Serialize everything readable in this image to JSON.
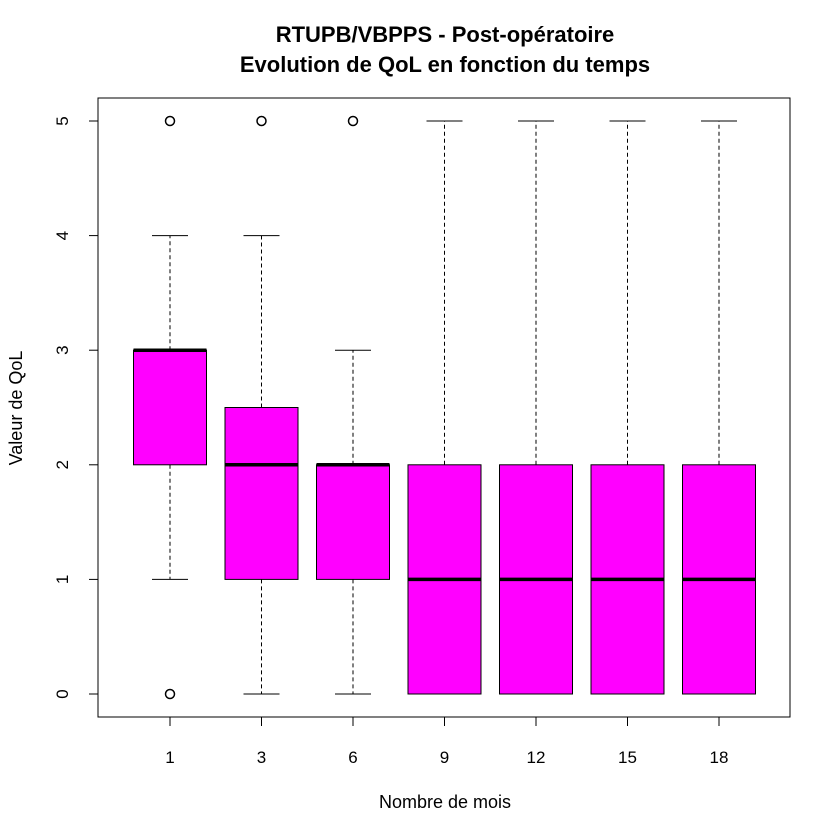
{
  "chart_data": {
    "type": "boxplot",
    "title": "RTUPB/VBPPS - Post-opératoire",
    "subtitle": "Evolution de QoL en fonction du temps",
    "xlabel": "Nombre de mois",
    "ylabel": "Valeur de QoL",
    "ylim": [
      0,
      5
    ],
    "yticks": [
      0,
      1,
      2,
      3,
      4,
      5
    ],
    "categories": [
      "1",
      "3",
      "6",
      "9",
      "12",
      "15",
      "18"
    ],
    "boxes": [
      {
        "category": "1",
        "whisker_low": 1,
        "q1": 2,
        "median": 3,
        "q3": 3,
        "whisker_high": 4,
        "outliers": [
          5,
          0
        ]
      },
      {
        "category": "3",
        "whisker_low": 0,
        "q1": 1,
        "median": 2,
        "q3": 2.5,
        "whisker_high": 4,
        "outliers": [
          5
        ]
      },
      {
        "category": "6",
        "whisker_low": 0,
        "q1": 1,
        "median": 2,
        "q3": 2,
        "whisker_high": 3,
        "outliers": [
          5
        ]
      },
      {
        "category": "9",
        "whisker_low": 0,
        "q1": 0,
        "median": 1,
        "q3": 2,
        "whisker_high": 5,
        "outliers": []
      },
      {
        "category": "12",
        "whisker_low": 0,
        "q1": 0,
        "median": 1,
        "q3": 2,
        "whisker_high": 5,
        "outliers": []
      },
      {
        "category": "15",
        "whisker_low": 0,
        "q1": 0,
        "median": 1,
        "q3": 2,
        "whisker_high": 5,
        "outliers": []
      },
      {
        "category": "18",
        "whisker_low": 0,
        "q1": 0,
        "median": 1,
        "q3": 2,
        "whisker_high": 5,
        "outliers": []
      }
    ],
    "box_color": "#FF00FF",
    "grid": false
  }
}
